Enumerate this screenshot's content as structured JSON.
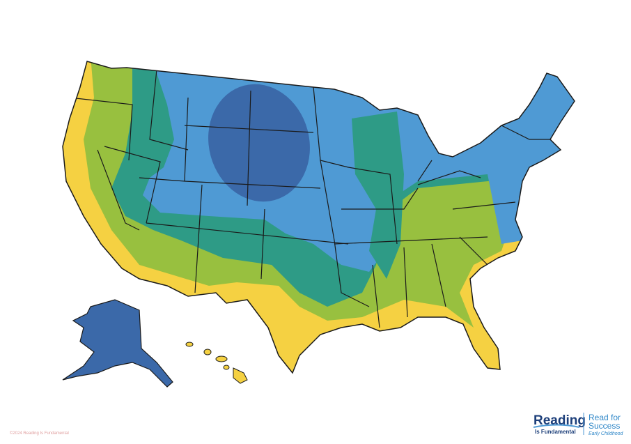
{
  "copyright": "©2024 Reading Is Fundamental",
  "logo": {
    "reading": "Reading",
    "fundamental": "Is Fundamental"
  },
  "partner": {
    "line1": "Read for",
    "line2": "Success",
    "line3": "Early Childhood"
  }
}
